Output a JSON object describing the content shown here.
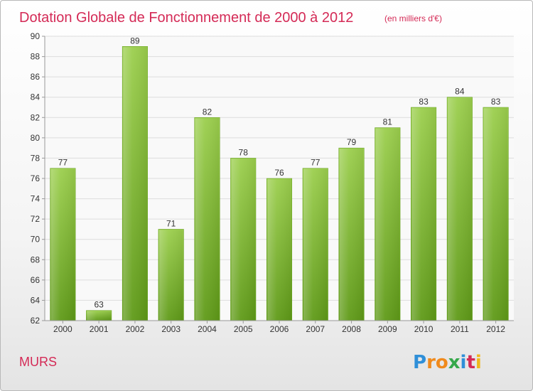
{
  "chart_data": {
    "type": "bar",
    "title": "Dotation Globale de Fonctionnement de 2000 à 2012",
    "subtitle": "(en milliers d'€)",
    "categories": [
      "2000",
      "2001",
      "2002",
      "2003",
      "2004",
      "2005",
      "2006",
      "2007",
      "2008",
      "2009",
      "2010",
      "2011",
      "2012"
    ],
    "values": [
      77,
      63,
      89,
      71,
      82,
      78,
      76,
      77,
      79,
      81,
      83,
      84,
      83
    ],
    "ylim": [
      62,
      90
    ],
    "yticks": [
      62,
      64,
      66,
      68,
      70,
      72,
      74,
      76,
      78,
      80,
      82,
      84,
      86,
      88,
      90
    ],
    "grid": true,
    "bar_color": "#7ab530"
  },
  "commune": "MURS",
  "logo": {
    "letters": [
      "P",
      "r",
      "o",
      "x",
      "i",
      "t",
      "i"
    ],
    "colors": [
      "#2f8fd8",
      "#f08a1c",
      "#f08a1c",
      "#35a84a",
      "#2f8fd8",
      "#d42a56",
      "#f0b81c"
    ]
  }
}
